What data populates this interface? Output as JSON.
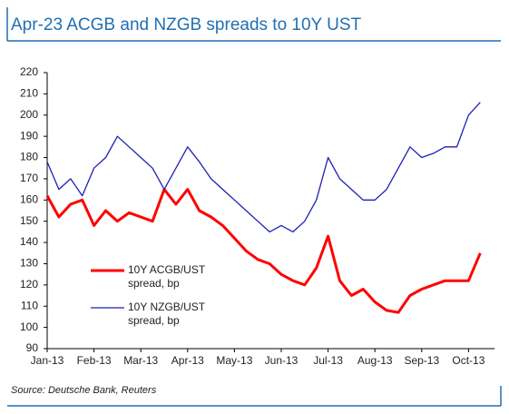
{
  "chart_data": {
    "type": "line",
    "title": "Apr-23 ACGB and NZGB spreads to 10Y UST",
    "source": "Source: Deutsche Bank, Reuters",
    "categories": [
      "Jan-13",
      null,
      null,
      null,
      "Feb-13",
      null,
      null,
      null,
      "Mar-13",
      null,
      null,
      null,
      "Apr-13",
      null,
      null,
      null,
      "May-13",
      null,
      null,
      null,
      "Jun-13",
      null,
      null,
      null,
      "Jul-13",
      null,
      null,
      null,
      "Aug-13",
      null,
      null,
      null,
      "Sep-13",
      null,
      null,
      null,
      "Oct-13",
      null
    ],
    "series": [
      {
        "name": "10Y ACGB/UST spread, bp",
        "color": "#ff0000",
        "values": [
          162,
          152,
          158,
          160,
          148,
          155,
          150,
          154,
          152,
          150,
          165,
          158,
          165,
          155,
          152,
          148,
          142,
          136,
          132,
          130,
          125,
          122,
          120,
          128,
          143,
          122,
          115,
          118,
          112,
          108,
          107,
          115,
          118,
          120,
          122,
          122,
          122,
          135
        ]
      },
      {
        "name": "10Y NZGB/UST spread, bp",
        "color": "#1f1fb4",
        "values": [
          178,
          165,
          170,
          162,
          175,
          180,
          190,
          185,
          180,
          175,
          165,
          175,
          185,
          178,
          170,
          165,
          160,
          155,
          150,
          145,
          148,
          145,
          150,
          160,
          180,
          170,
          165,
          160,
          160,
          165,
          175,
          185,
          180,
          182,
          185,
          185,
          200,
          206
        ]
      }
    ],
    "ylim": [
      90,
      220
    ],
    "yticks": [
      90,
      100,
      110,
      120,
      130,
      140,
      150,
      160,
      170,
      180,
      190,
      200,
      210,
      220
    ]
  }
}
